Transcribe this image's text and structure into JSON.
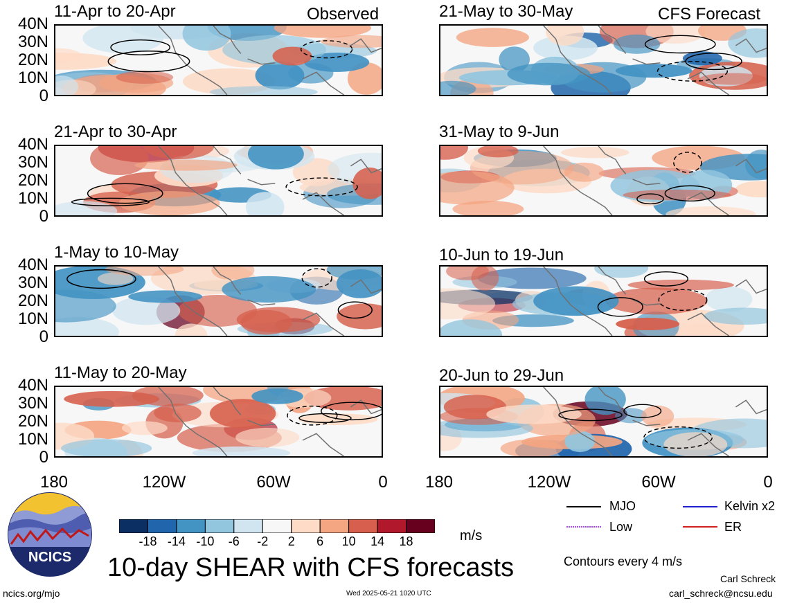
{
  "chart_data": {
    "type": "heatmap",
    "title": "10-day SHEAR with CFS forecasts",
    "units": "m/s",
    "contour_note": "Contours every 4 m/s",
    "y_ticks": [
      "40N",
      "30N",
      "20N",
      "10N",
      "0"
    ],
    "x_ticks": [
      "180",
      "120W",
      "60W",
      "0"
    ],
    "x_range": [
      -180,
      0
    ],
    "y_range": [
      0,
      40
    ],
    "column_tags": [
      "Observed",
      "CFS Forecast"
    ],
    "colorbar": {
      "ticks": [
        "-18",
        "-14",
        "-10",
        "-6",
        "-2",
        "2",
        "6",
        "10",
        "14",
        "18"
      ],
      "colors": [
        "#0b2f63",
        "#2166ac",
        "#4393c3",
        "#92c5de",
        "#d1e5f0",
        "#f7f7f7",
        "#fddbc7",
        "#f4a582",
        "#d6604d",
        "#b2182b",
        "#67001f"
      ]
    },
    "legend": [
      {
        "name": "MJO",
        "color": "#000000"
      },
      {
        "name": "Kelvin x2",
        "color": "#1f1fd0"
      },
      {
        "name": "Low",
        "color": "#a64ee0"
      },
      {
        "name": "ER",
        "color": "#d02020"
      }
    ],
    "panels": [
      {
        "title": "11-Apr to 20-Apr",
        "column": "observed",
        "row": 0
      },
      {
        "title": "21-Apr to 30-Apr",
        "column": "observed",
        "row": 1
      },
      {
        "title": "1-May to 10-May",
        "column": "observed",
        "row": 2
      },
      {
        "title": "11-May to 20-May",
        "column": "observed",
        "row": 3
      },
      {
        "title": "21-May to 30-May",
        "column": "forecast",
        "row": 0
      },
      {
        "title": "31-May to 9-Jun",
        "column": "forecast",
        "row": 1
      },
      {
        "title": "10-Jun to 19-Jun",
        "column": "forecast",
        "row": 2
      },
      {
        "title": "20-Jun to 29-Jun",
        "column": "forecast",
        "row": 3
      }
    ]
  },
  "logo_text": "NCICS",
  "footer": {
    "left": "ncics.org/mjo",
    "center": "Wed 2025-05-21 1020 UTC",
    "author": "Carl Schreck",
    "email": "carl_schreck@ncsu.edu"
  }
}
